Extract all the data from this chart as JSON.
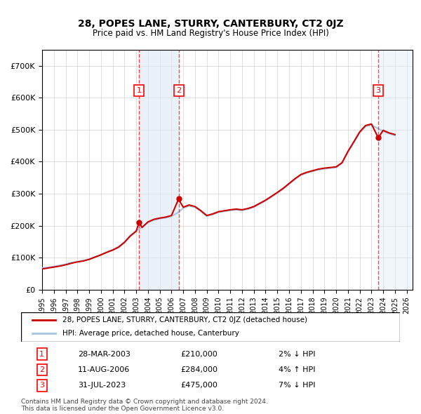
{
  "title": "28, POPES LANE, STURRY, CANTERBURY, CT2 0JZ",
  "subtitle": "Price paid vs. HM Land Registry's House Price Index (HPI)",
  "legend_line1": "28, POPES LANE, STURRY, CANTERBURY, CT2 0JZ (detached house)",
  "legend_line2": "HPI: Average price, detached house, Canterbury",
  "footer1": "Contains HM Land Registry data © Crown copyright and database right 2024.",
  "footer2": "This data is licensed under the Open Government Licence v3.0.",
  "transactions": [
    {
      "label": "1",
      "date": "28-MAR-2003",
      "price": 210000,
      "hpi_rel": "2% ↓ HPI",
      "x_year": 2003.24
    },
    {
      "label": "2",
      "date": "11-AUG-2006",
      "price": 284000,
      "hpi_rel": "4% ↑ HPI",
      "x_year": 2006.61
    },
    {
      "label": "3",
      "date": "31-JUL-2023",
      "price": 475000,
      "hpi_rel": "7% ↓ HPI",
      "x_year": 2023.58
    }
  ],
  "hpi_color": "#a8c4e0",
  "price_color": "#cc0000",
  "xmin": 1995.0,
  "xmax": 2026.5,
  "ymin": 0,
  "ymax": 750000,
  "yticks": [
    0,
    100000,
    200000,
    300000,
    400000,
    500000,
    600000,
    700000
  ],
  "ytick_labels": [
    "£0",
    "£100K",
    "£200K",
    "£300K",
    "£400K",
    "£500K",
    "£600K",
    "£700K"
  ],
  "hpi_data": {
    "years": [
      1995.0,
      1995.5,
      1996.0,
      1996.5,
      1997.0,
      1997.5,
      1998.0,
      1998.5,
      1999.0,
      1999.5,
      2000.0,
      2000.5,
      2001.0,
      2001.5,
      2002.0,
      2002.5,
      2003.0,
      2003.5,
      2004.0,
      2004.5,
      2005.0,
      2005.5,
      2006.0,
      2006.5,
      2007.0,
      2007.5,
      2008.0,
      2008.5,
      2009.0,
      2009.5,
      2010.0,
      2010.5,
      2011.0,
      2011.5,
      2012.0,
      2012.5,
      2013.0,
      2013.5,
      2014.0,
      2014.5,
      2015.0,
      2015.5,
      2016.0,
      2016.5,
      2017.0,
      2017.5,
      2018.0,
      2018.5,
      2019.0,
      2019.5,
      2020.0,
      2020.5,
      2021.0,
      2021.5,
      2022.0,
      2022.5,
      2023.0,
      2023.5,
      2024.0,
      2024.5,
      2025.0
    ],
    "values": [
      68000,
      70000,
      73000,
      76000,
      80000,
      85000,
      88000,
      91000,
      96000,
      103000,
      110000,
      118000,
      125000,
      135000,
      150000,
      170000,
      185000,
      195000,
      210000,
      218000,
      222000,
      225000,
      230000,
      240000,
      255000,
      262000,
      258000,
      245000,
      230000,
      235000,
      242000,
      245000,
      248000,
      250000,
      248000,
      252000,
      258000,
      268000,
      278000,
      290000,
      302000,
      315000,
      330000,
      345000,
      358000,
      365000,
      370000,
      375000,
      378000,
      380000,
      382000,
      395000,
      430000,
      460000,
      490000,
      510000,
      515000,
      505000,
      495000,
      488000,
      482000
    ]
  },
  "price_data": {
    "years": [
      1995.0,
      1995.5,
      1996.0,
      1996.5,
      1997.0,
      1997.5,
      1998.0,
      1998.5,
      1999.0,
      1999.5,
      2000.0,
      2000.5,
      2001.0,
      2001.5,
      2002.0,
      2002.5,
      2003.0,
      2003.24,
      2003.5,
      2004.0,
      2004.5,
      2005.0,
      2005.5,
      2006.0,
      2006.61,
      2006.8,
      2007.0,
      2007.5,
      2008.0,
      2008.5,
      2009.0,
      2009.5,
      2010.0,
      2010.5,
      2011.0,
      2011.5,
      2012.0,
      2012.5,
      2013.0,
      2013.5,
      2014.0,
      2014.5,
      2015.0,
      2015.5,
      2016.0,
      2016.5,
      2017.0,
      2017.5,
      2018.0,
      2018.5,
      2019.0,
      2019.5,
      2020.0,
      2020.5,
      2021.0,
      2021.5,
      2022.0,
      2022.5,
      2023.0,
      2023.58,
      2024.0,
      2024.5,
      2025.0
    ],
    "values": [
      65000,
      68000,
      71000,
      74000,
      78000,
      83000,
      87000,
      90000,
      95000,
      102000,
      109000,
      117000,
      124000,
      133000,
      148000,
      168000,
      183000,
      210000,
      195000,
      212000,
      220000,
      224000,
      227000,
      232000,
      284000,
      270000,
      258000,
      265000,
      260000,
      247000,
      232000,
      237000,
      244000,
      247000,
      250000,
      252000,
      250000,
      254000,
      260000,
      270000,
      280000,
      292000,
      304000,
      317000,
      332000,
      347000,
      360000,
      367000,
      372000,
      377000,
      380000,
      382000,
      384000,
      397000,
      432000,
      462000,
      493000,
      513000,
      518000,
      475000,
      498000,
      490000,
      485000
    ]
  }
}
